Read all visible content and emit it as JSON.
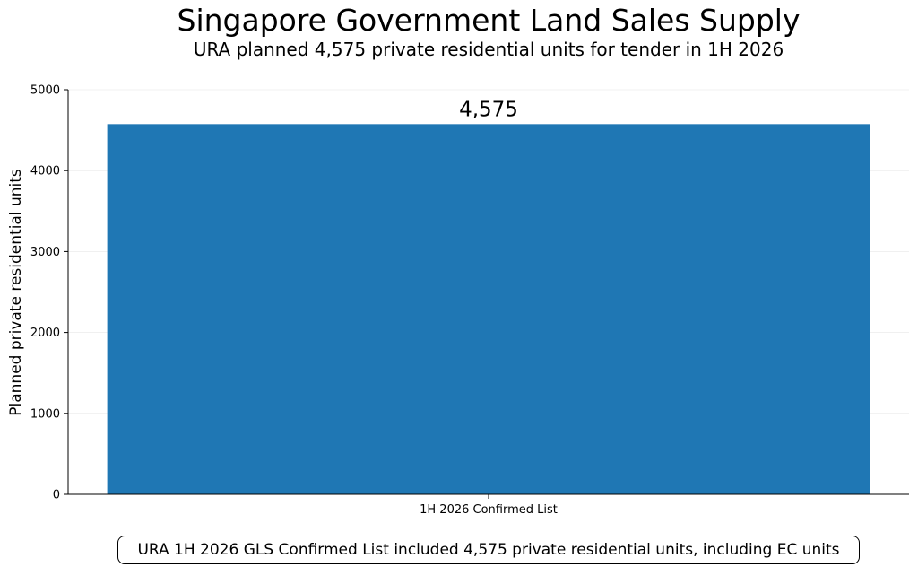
{
  "chart_data": {
    "type": "bar",
    "title": "Singapore Government Land Sales Supply",
    "subtitle": "URA planned 4,575 private residential units for tender in 1H 2026",
    "categories": [
      "1H 2026 Confirmed List"
    ],
    "values": [
      4575
    ],
    "data_labels": [
      "4,575"
    ],
    "xlabel": "",
    "ylabel": "Planned private residential units",
    "ylim": [
      0,
      5000
    ],
    "yticks": [
      0,
      1000,
      2000,
      3000,
      4000,
      5000
    ],
    "grid": "horizontal, light",
    "legend": "none",
    "bar_color": "#1f77b4",
    "annotation": "URA 1H 2026 GLS Confirmed List included 4,575 private residential units, including EC units"
  }
}
